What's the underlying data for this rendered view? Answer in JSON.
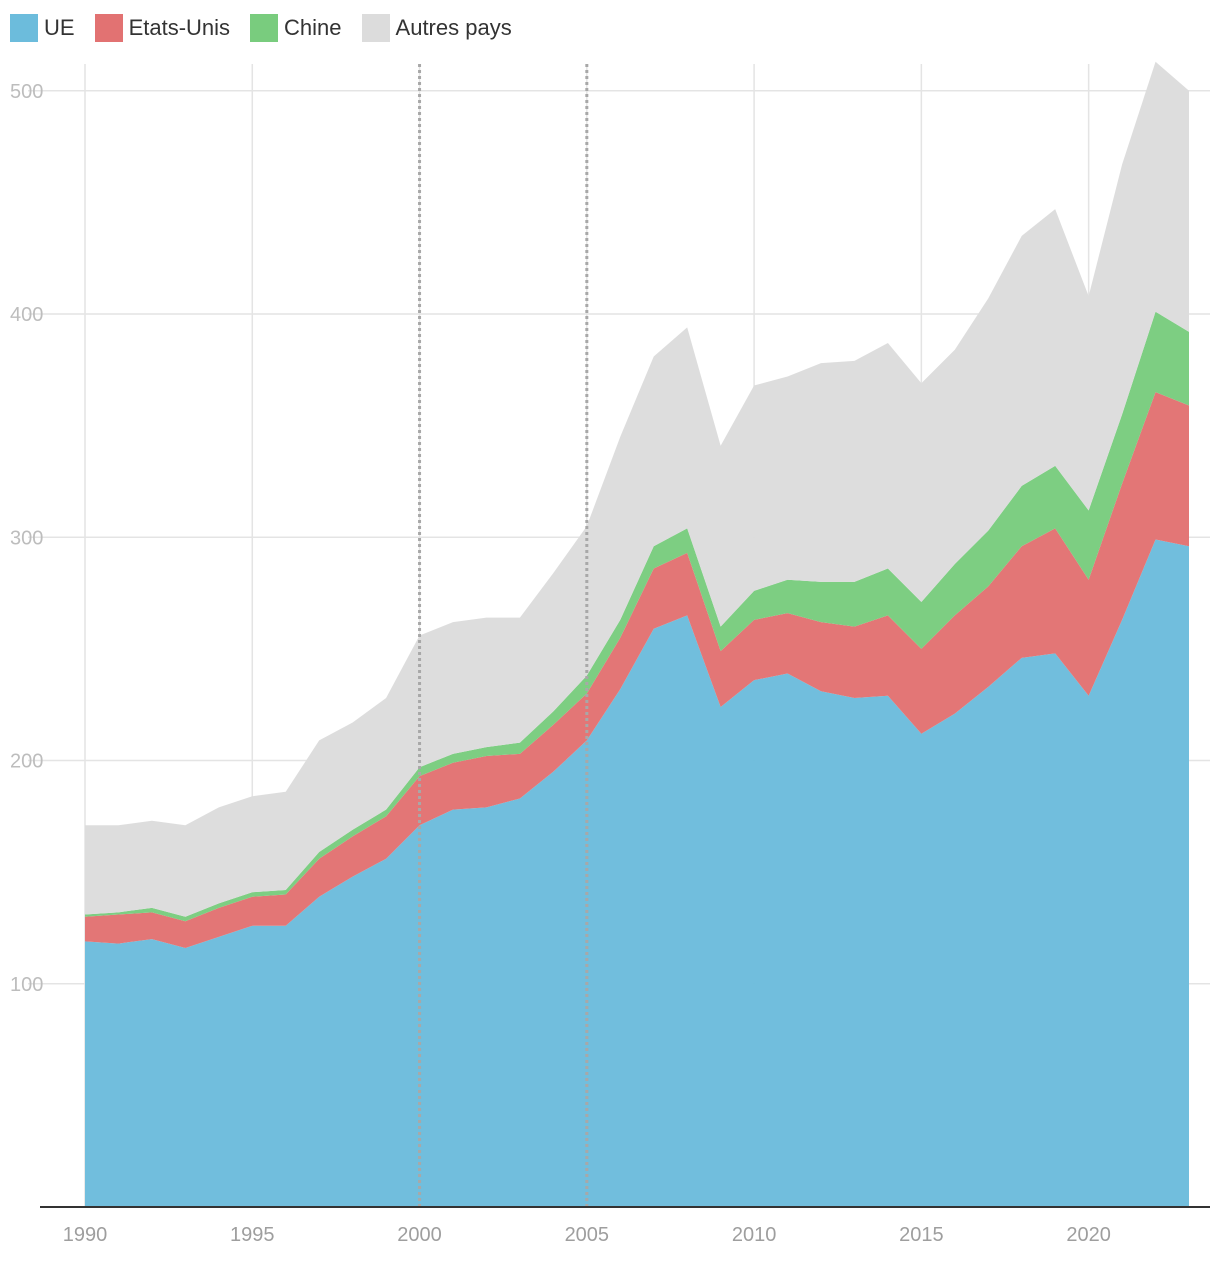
{
  "chart_data": {
    "type": "area",
    "stacked": true,
    "x": [
      1990,
      1991,
      1992,
      1993,
      1994,
      1995,
      1996,
      1997,
      1998,
      1999,
      2000,
      2001,
      2002,
      2003,
      2004,
      2005,
      2006,
      2007,
      2008,
      2009,
      2010,
      2011,
      2012,
      2013,
      2014,
      2015,
      2016,
      2017,
      2018,
      2019,
      2020,
      2021,
      2022,
      2023
    ],
    "series": [
      {
        "name": "UE",
        "color": "#6cbcdc",
        "values": [
          119,
          118,
          120,
          116,
          121,
          126,
          126,
          139,
          148,
          156,
          171,
          178,
          179,
          183,
          195,
          209,
          232,
          259,
          265,
          224,
          236,
          239,
          231,
          228,
          229,
          212,
          221,
          233,
          246,
          248,
          229,
          263,
          299,
          296
        ]
      },
      {
        "name": "Etats-Unis",
        "color": "#e27272",
        "values": [
          11,
          13,
          12,
          12,
          13,
          13,
          14,
          17,
          18,
          19,
          22,
          21,
          23,
          20,
          21,
          21,
          23,
          27,
          28,
          25,
          27,
          27,
          31,
          32,
          36,
          38,
          44,
          45,
          50,
          56,
          52,
          61,
          66,
          63
        ]
      },
      {
        "name": "Chine",
        "color": "#79cc7e",
        "values": [
          1,
          1,
          2,
          2,
          2,
          2,
          2,
          3,
          3,
          3,
          4,
          4,
          4,
          5,
          6,
          8,
          8,
          10,
          11,
          11,
          13,
          15,
          18,
          20,
          21,
          21,
          23,
          25,
          27,
          28,
          31,
          31,
          36,
          33
        ]
      },
      {
        "name": "Autres pays",
        "color": "#dcdcdc",
        "values": [
          40,
          39,
          39,
          41,
          43,
          43,
          44,
          50,
          48,
          50,
          59,
          59,
          58,
          56,
          62,
          67,
          82,
          85,
          90,
          81,
          92,
          91,
          98,
          99,
          101,
          98,
          96,
          104,
          112,
          115,
          96,
          112,
          112,
          108
        ]
      }
    ],
    "ylim": [
      0,
      512
    ],
    "xlim": [
      1990,
      2023
    ],
    "y_ticks": [
      100,
      200,
      300,
      400,
      500
    ],
    "y_tick_labels": [
      "100",
      "200",
      "300",
      "400",
      "500"
    ],
    "x_ticks": [
      1990,
      1995,
      2000,
      2005,
      2010,
      2015,
      2020
    ],
    "x_tick_labels": [
      "1990",
      "1995",
      "2000",
      "2005",
      "2010",
      "2015",
      "2020"
    ],
    "reference_lines_x": [
      2000,
      2005
    ],
    "grid": true,
    "legend_position": "top-left"
  }
}
